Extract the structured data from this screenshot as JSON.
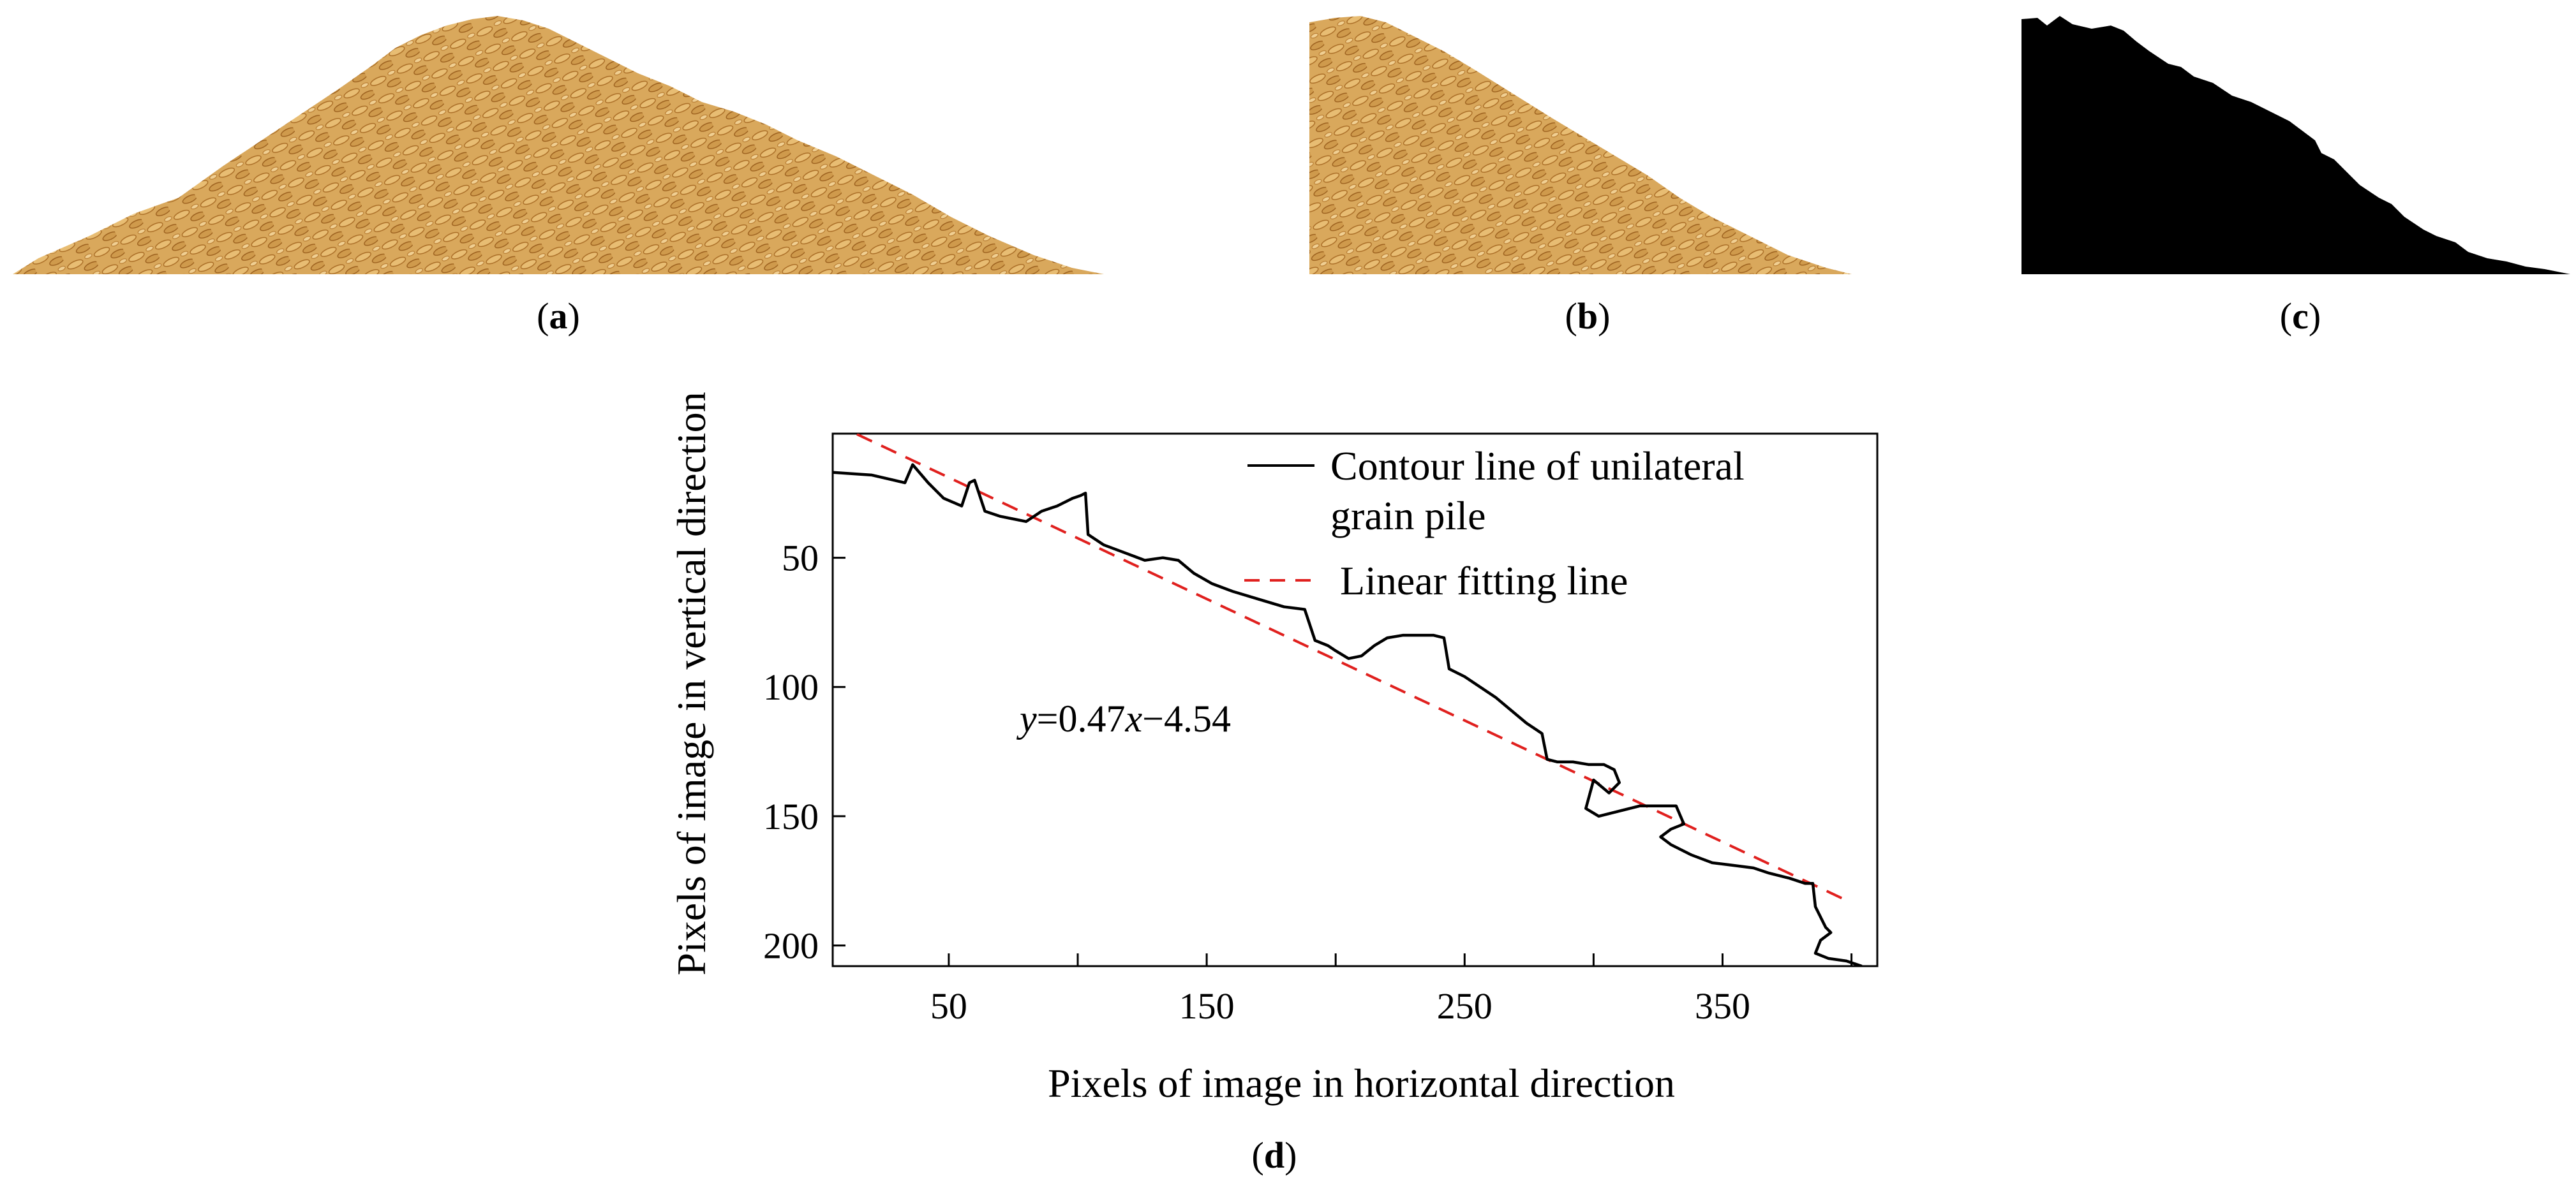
{
  "panels": {
    "a": {
      "label": "a"
    },
    "b": {
      "label": "b"
    },
    "c": {
      "label": "c"
    },
    "d": {
      "label": "d"
    }
  },
  "colors": {
    "grain_fill": "#d9a85c",
    "grain_shade": "#b5782d",
    "grain_light": "#f0cf92",
    "mask": "#000000",
    "fit_line": "#e0201e",
    "contour": "#000000"
  },
  "chart_data": {
    "type": "line",
    "title": "",
    "xlabel": "Pixels of image in horizontal direction",
    "ylabel": "Pixels of image in vertical direction",
    "xlim": [
      5,
      410
    ],
    "ylim": [
      208,
      2
    ],
    "y_inverted": true,
    "x_ticks": [
      50,
      150,
      250,
      350
    ],
    "y_ticks": [
      50,
      100,
      150,
      200
    ],
    "x_minor_ticks": [
      100,
      200,
      300,
      400
    ],
    "grid": false,
    "legend_position": "top-right",
    "equation": "y=0.47x−4.54",
    "series": [
      {
        "name": "Contour line of unilateral grain pile",
        "style": "solid",
        "color": "#000000",
        "x": [
          5,
          20,
          33,
          36,
          42,
          48,
          55,
          58,
          60,
          64,
          70,
          75,
          80,
          86,
          92,
          98,
          101,
          103,
          104,
          110,
          118,
          126,
          133,
          139,
          145,
          152,
          160,
          170,
          180,
          188,
          192,
          197,
          200,
          205,
          210,
          215,
          220,
          226,
          232,
          238,
          242,
          244,
          250,
          256,
          262,
          268,
          274,
          280,
          282,
          286,
          292,
          298,
          304,
          308,
          310,
          306,
          300,
          297,
          302,
          310,
          318,
          322,
          326,
          332,
          335,
          330,
          326,
          330,
          338,
          346,
          354,
          362,
          368,
          376,
          382,
          385,
          386,
          388,
          390,
          392,
          388,
          386,
          391,
          398,
          404
        ],
        "y": [
          17,
          18,
          21,
          14,
          21,
          27,
          30,
          21,
          20,
          32,
          34,
          35,
          36,
          32,
          30,
          27,
          26,
          25,
          41,
          45,
          48,
          51,
          50,
          51,
          56,
          60,
          63,
          66,
          69,
          70,
          82,
          84,
          86,
          89,
          88,
          84,
          81,
          80,
          80,
          80,
          81,
          93,
          96,
          100,
          104,
          109,
          114,
          118,
          128,
          129,
          129,
          130,
          130,
          132,
          137,
          141,
          136,
          147,
          150,
          148,
          146,
          146,
          146,
          146,
          153,
          155,
          158,
          161,
          165,
          168,
          169,
          170,
          172,
          174,
          176,
          176,
          185,
          189,
          193,
          195,
          198,
          203,
          205,
          206,
          208
        ]
      },
      {
        "name": "Linear fitting line",
        "style": "dashed",
        "color": "#e0201e",
        "slope": 0.47,
        "intercept": -4.54,
        "x": [
          5,
          397
        ],
        "y": [
          -2.19,
          182.05
        ]
      }
    ]
  }
}
